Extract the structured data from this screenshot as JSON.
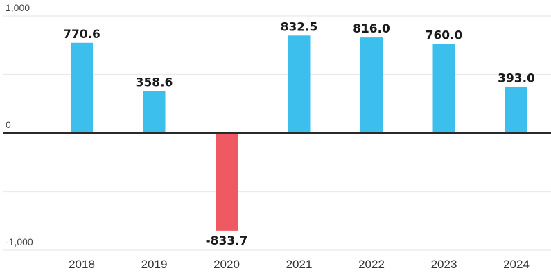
{
  "chart_data": {
    "type": "bar",
    "categories": [
      "2018",
      "2019",
      "2020",
      "2021",
      "2022",
      "2023",
      "2024"
    ],
    "values": [
      770.6,
      358.6,
      -833.7,
      832.5,
      816.0,
      760.0,
      393.0
    ],
    "data_labels": [
      "770.6",
      "358.6",
      "-833.7",
      "832.5",
      "816.0",
      "760.0",
      "393.0"
    ],
    "y_ticks": [
      {
        "value": 1000,
        "label": "1,000"
      },
      {
        "value": 0,
        "label": "0"
      },
      {
        "value": -1000,
        "label": "-1,000"
      }
    ],
    "gridline_values": [
      1000,
      500,
      -500,
      -1000
    ],
    "ylim": [
      -1000,
      1000
    ],
    "title": "",
    "xlabel": "",
    "ylabel": "",
    "grid": true,
    "legend": "none",
    "colors": {
      "positive": "#3dbfee",
      "negative": "#ef5a62",
      "grid": "#ebebeb",
      "zero_line": "#2a2a2a"
    }
  }
}
